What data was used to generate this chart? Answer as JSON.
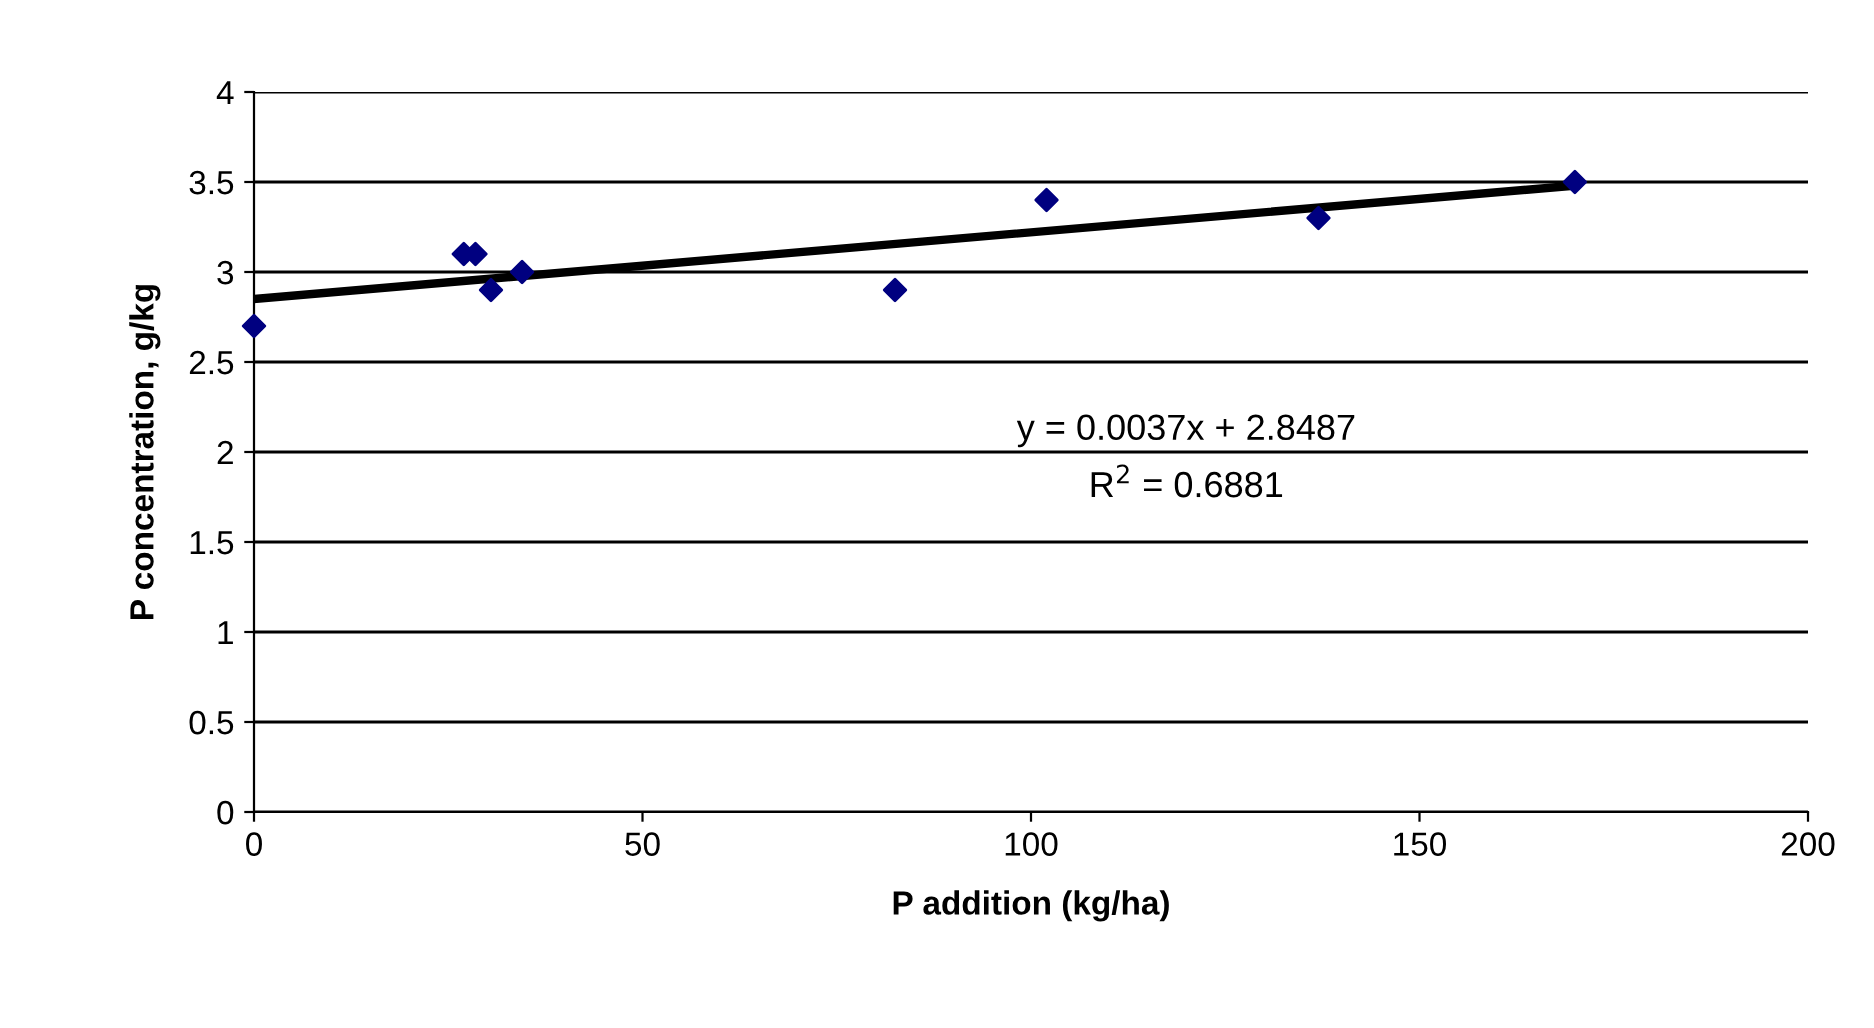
{
  "chart_data": {
    "type": "scatter",
    "xlabel": "P addition (kg/ha)",
    "ylabel": "P concentration, g/kg",
    "xlim": [
      0,
      200
    ],
    "xticks": [
      0,
      50,
      100,
      150,
      200
    ],
    "ylim": [
      0,
      4
    ],
    "yticks": [
      0,
      0.5,
      1,
      1.5,
      2,
      2.5,
      3,
      3.5,
      4
    ],
    "grid": "y",
    "series": [
      {
        "marker": "diamond",
        "color": "#000080",
        "x": [
          0,
          27,
          28.5,
          30.5,
          34.5,
          82.5,
          102,
          137,
          170
        ],
        "values": [
          2.7,
          3.1,
          3.1,
          2.9,
          3.0,
          2.9,
          3.4,
          3.3,
          3.5
        ]
      },
      {
        "type": "line",
        "color": "#000000",
        "x": [
          0,
          170
        ],
        "values": [
          2.85,
          3.48
        ]
      }
    ],
    "annotations": [
      "y = 0.0037x + 2.8487",
      "R$^{2}$ = 0.6881"
    ]
  }
}
